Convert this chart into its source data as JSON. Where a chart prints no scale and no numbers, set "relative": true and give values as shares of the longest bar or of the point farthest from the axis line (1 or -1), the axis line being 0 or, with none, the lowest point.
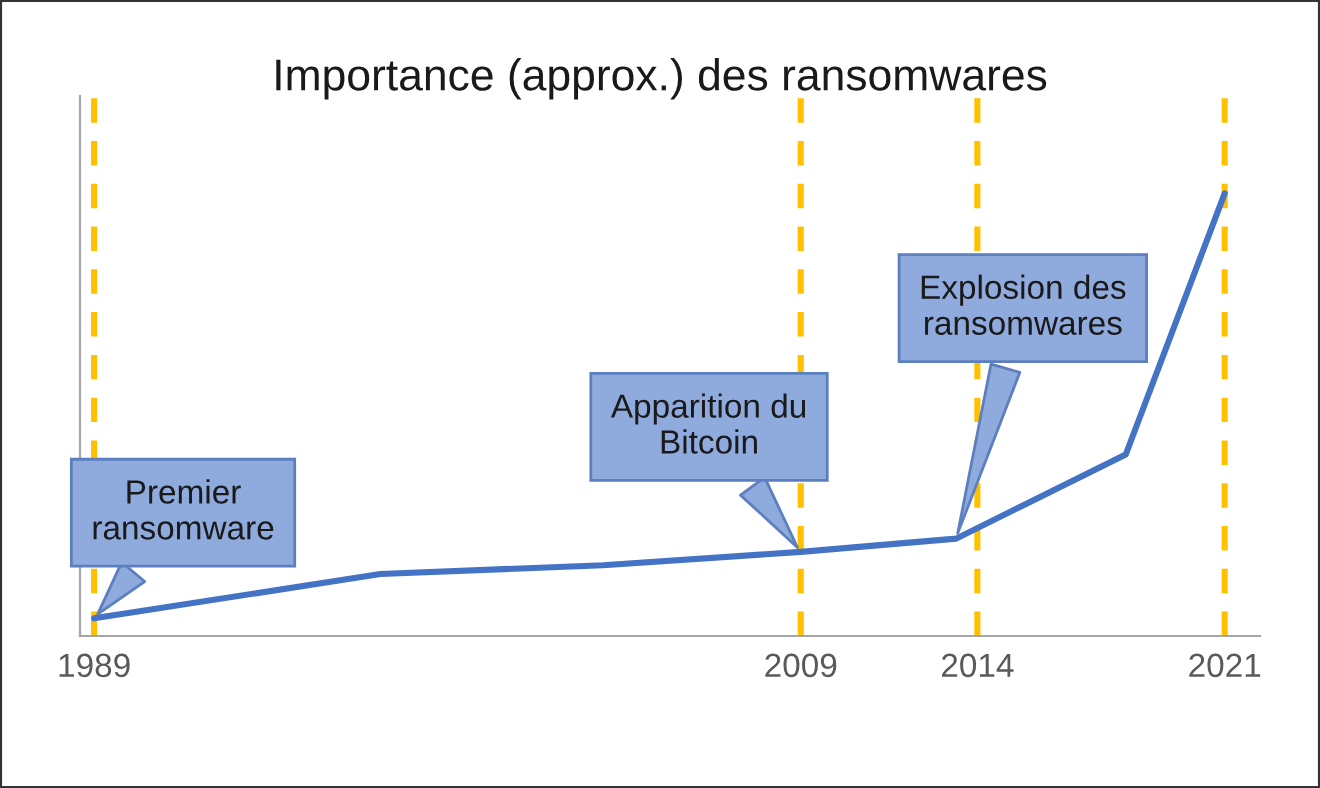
{
  "chart_data": {
    "type": "line",
    "title": "Importance (approx.) des ransomwares",
    "relative": true,
    "x": [
      1989,
      1997.1,
      2003.4,
      2009,
      2013.4,
      2018.2,
      2021
    ],
    "series": [
      {
        "color": "#4472c4",
        "values": [
          0.04,
          0.14,
          0.16,
          0.19,
          0.22,
          0.41,
          1
        ]
      }
    ],
    "xlim": [
      1988.6,
      2022
    ],
    "xticks": [
      1989,
      2009,
      2014,
      2021
    ],
    "ref_lines": [
      {
        "axis": "x",
        "value": 1989,
        "color": "#ffc000",
        "line_style": "dashed"
      },
      {
        "axis": "x",
        "value": 2009,
        "color": "#ffc000",
        "line_style": "dashed"
      },
      {
        "axis": "x",
        "value": 2014,
        "color": "#ffc000",
        "line_style": "dashed"
      },
      {
        "axis": "x",
        "value": 2021,
        "color": "#ffc000",
        "line_style": "dashed"
      }
    ],
    "annotations": [
      {
        "text": "Premier\nransomware",
        "x": 1989,
        "y": 0.04
      },
      {
        "text": "Apparition du\nBitcoin",
        "x": 2009,
        "y": 0.19
      },
      {
        "text": "Explosion des\nransomwares",
        "x": 2013.4,
        "y": 0.22
      }
    ],
    "grid": false,
    "legend": false
  }
}
